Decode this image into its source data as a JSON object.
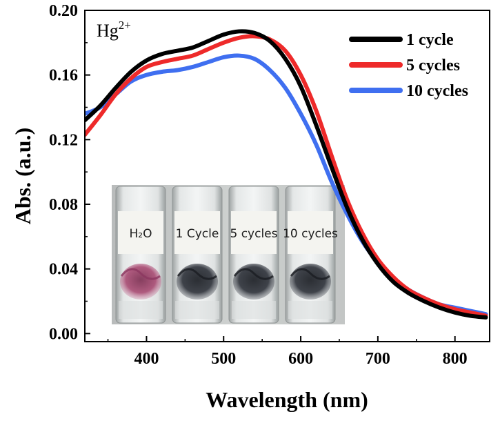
{
  "chart_data": {
    "type": "line",
    "xlabel": "Wavelength (nm)",
    "ylabel": "Abs. (a.u.)",
    "xlim": [
      320,
      845
    ],
    "ylim": [
      -0.005,
      0.2
    ],
    "xticks": [
      400,
      500,
      600,
      700,
      800
    ],
    "yticks": [
      0.0,
      0.04,
      0.08,
      0.12,
      0.16,
      0.2
    ],
    "ytick_labels": [
      "0.00",
      "0.04",
      "0.08",
      "0.12",
      "0.16",
      "0.20"
    ],
    "grid": false,
    "legend_position": "top-right",
    "annotation": {
      "base": "Hg",
      "superscript": "2+"
    },
    "series": [
      {
        "name": "1 cycle",
        "color": "#000000",
        "x": [
          320,
          340,
          360,
          380,
          400,
          420,
          440,
          460,
          480,
          500,
          520,
          540,
          560,
          580,
          600,
          620,
          640,
          660,
          680,
          700,
          720,
          740,
          760,
          780,
          800,
          820,
          840
        ],
        "y": [
          0.132,
          0.141,
          0.152,
          0.162,
          0.169,
          0.173,
          0.175,
          0.177,
          0.181,
          0.185,
          0.187,
          0.186,
          0.181,
          0.17,
          0.153,
          0.129,
          0.103,
          0.078,
          0.058,
          0.043,
          0.032,
          0.025,
          0.02,
          0.016,
          0.013,
          0.011,
          0.01
        ]
      },
      {
        "name": "5 cycles",
        "color": "#ee2a2a",
        "x": [
          320,
          340,
          360,
          380,
          400,
          420,
          440,
          460,
          480,
          500,
          520,
          540,
          560,
          580,
          600,
          620,
          640,
          660,
          680,
          700,
          720,
          740,
          760,
          780,
          800,
          820,
          840
        ],
        "y": [
          0.123,
          0.135,
          0.148,
          0.158,
          0.165,
          0.168,
          0.17,
          0.172,
          0.176,
          0.18,
          0.183,
          0.184,
          0.182,
          0.175,
          0.16,
          0.138,
          0.11,
          0.083,
          0.062,
          0.046,
          0.035,
          0.027,
          0.022,
          0.018,
          0.015,
          0.013,
          0.011
        ]
      },
      {
        "name": "10 cycles",
        "color": "#3f6ff0",
        "x": [
          320,
          340,
          360,
          380,
          400,
          420,
          440,
          460,
          480,
          500,
          520,
          540,
          560,
          580,
          600,
          620,
          640,
          660,
          680,
          700,
          720,
          740,
          760,
          780,
          800,
          820,
          840
        ],
        "y": [
          0.136,
          0.14,
          0.148,
          0.156,
          0.16,
          0.162,
          0.163,
          0.165,
          0.168,
          0.171,
          0.172,
          0.17,
          0.163,
          0.152,
          0.136,
          0.117,
          0.094,
          0.074,
          0.057,
          0.044,
          0.034,
          0.027,
          0.022,
          0.018,
          0.016,
          0.014,
          0.012
        ]
      }
    ]
  },
  "inset_photo": {
    "vials": [
      {
        "label": "H₂O",
        "sample": "magenta-fiber"
      },
      {
        "label": "1 Cycle",
        "sample": "dark-fiber"
      },
      {
        "label": "5 cycles",
        "sample": "dark-fiber"
      },
      {
        "label": "10 cycles",
        "sample": "dark-fiber"
      }
    ]
  }
}
